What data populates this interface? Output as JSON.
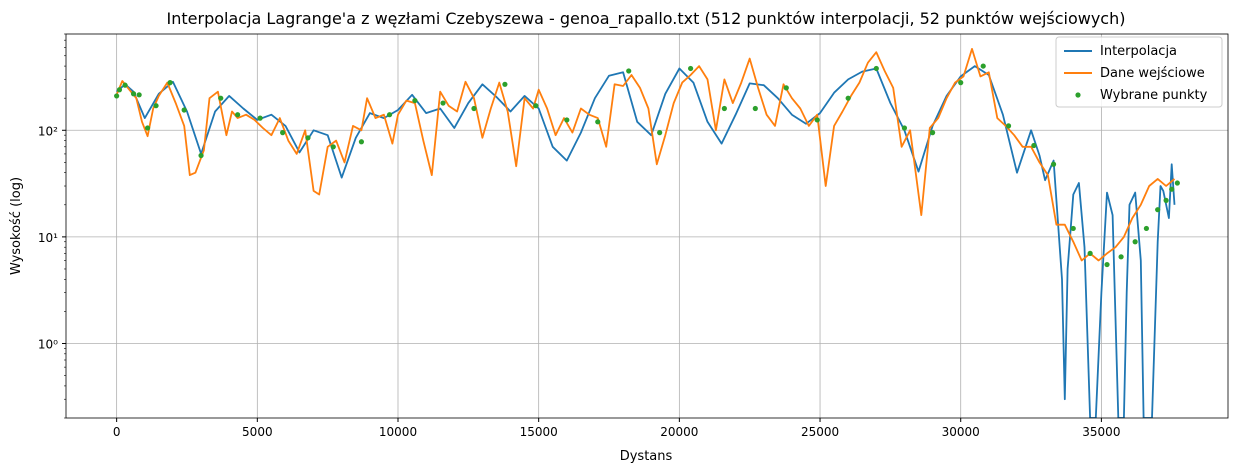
{
  "chart_data": {
    "type": "line",
    "title": "Interpolacja Lagrange'a z węzłami Czebyszewa - genoa_rapallo.txt (512 punktów interpolacji, 52 punktów wejściowych)",
    "xlabel": "Dystans",
    "ylabel": "Wysokość (log)",
    "xlim": [
      -1800,
      39500
    ],
    "ylim": [
      0.2,
      800
    ],
    "yscale": "log",
    "grid": true,
    "legend_position": "top-right",
    "x_ticks": [
      0,
      5000,
      10000,
      15000,
      20000,
      25000,
      30000,
      35000
    ],
    "x_tick_labels": [
      "0",
      "5000",
      "10000",
      "15000",
      "20000",
      "25000",
      "30000",
      "35000"
    ],
    "y_ticks": [
      1,
      10,
      100
    ],
    "y_tick_labels": [
      "10⁰",
      "10¹",
      "10²"
    ],
    "series": [
      {
        "name": "Interpolacja",
        "color": "#1f77b4",
        "style": "line",
        "x": [
          0,
          300,
          600,
          1000,
          1500,
          2000,
          2500,
          3000,
          3500,
          4000,
          4500,
          5000,
          5500,
          6000,
          6500,
          7000,
          7500,
          8000,
          8500,
          9000,
          9500,
          10000,
          10500,
          11000,
          11500,
          12000,
          12500,
          13000,
          13500,
          14000,
          14500,
          15000,
          15500,
          16000,
          16500,
          17000,
          17500,
          18000,
          18500,
          19000,
          19500,
          20000,
          20500,
          21000,
          21500,
          22000,
          22500,
          23000,
          23500,
          24000,
          24500,
          25000,
          25500,
          26000,
          26500,
          27000,
          27500,
          28000,
          28500,
          29000,
          29500,
          30000,
          30500,
          31000,
          31500,
          32000,
          32500,
          32800,
          33000,
          33300,
          33600,
          33700,
          33800,
          34000,
          34200,
          34400,
          34600,
          34800,
          35000,
          35200,
          35400,
          35600,
          35800,
          35900,
          36000,
          36200,
          36400,
          36500,
          36800,
          37000,
          37100,
          37200,
          37400,
          37500,
          37600
        ],
        "values": [
          230,
          270,
          230,
          130,
          220,
          285,
          150,
          60,
          150,
          210,
          160,
          125,
          140,
          110,
          62,
          100,
          90,
          36,
          85,
          145,
          130,
          155,
          215,
          145,
          160,
          105,
          180,
          270,
          205,
          150,
          210,
          160,
          70,
          52,
          95,
          200,
          325,
          350,
          120,
          90,
          220,
          380,
          280,
          120,
          75,
          140,
          275,
          265,
          200,
          140,
          115,
          145,
          225,
          300,
          355,
          380,
          180,
          100,
          41,
          110,
          210,
          320,
          400,
          330,
          140,
          40,
          100,
          58,
          34,
          52,
          4,
          0.3,
          5,
          25,
          32,
          8,
          0.2,
          0.2,
          3,
          26,
          16,
          0.2,
          0.2,
          3,
          20,
          26,
          6,
          0.2,
          0.2,
          9,
          30,
          27,
          15,
          48,
          20
        ]
      },
      {
        "name": "Dane wejściowe",
        "color": "#ff7f0e",
        "style": "line",
        "x": [
          0,
          200,
          400,
          700,
          900,
          1100,
          1300,
          1500,
          1800,
          2100,
          2400,
          2600,
          2800,
          3100,
          3300,
          3600,
          3900,
          4100,
          4300,
          4600,
          4900,
          5200,
          5500,
          5800,
          6100,
          6400,
          6700,
          7000,
          7200,
          7500,
          7800,
          8100,
          8400,
          8700,
          8900,
          9200,
          9500,
          9800,
          10000,
          10300,
          10600,
          10900,
          11200,
          11500,
          11800,
          12100,
          12400,
          12700,
          13000,
          13300,
          13600,
          13900,
          14200,
          14500,
          14800,
          15000,
          15300,
          15600,
          15900,
          16200,
          16500,
          16800,
          17100,
          17400,
          17700,
          18000,
          18300,
          18600,
          18900,
          19200,
          19500,
          19800,
          20100,
          20400,
          20700,
          21000,
          21300,
          21600,
          21900,
          22200,
          22500,
          22800,
          23100,
          23400,
          23700,
          24000,
          24300,
          24600,
          24900,
          25200,
          25500,
          25800,
          26100,
          26400,
          26700,
          27000,
          27300,
          27600,
          27900,
          28200,
          28600,
          28900,
          29200,
          29500,
          29800,
          30100,
          30400,
          30700,
          31000,
          31300,
          31600,
          31900,
          32200,
          32500,
          32800,
          33100,
          33400,
          33700,
          34000,
          34300,
          34600,
          34900,
          35200,
          35500,
          35800,
          36100,
          36400,
          36700,
          37000,
          37300,
          37600
        ],
        "values": [
          215,
          290,
          250,
          200,
          120,
          88,
          160,
          210,
          280,
          180,
          110,
          38,
          40,
          65,
          200,
          230,
          90,
          150,
          130,
          140,
          125,
          105,
          90,
          130,
          80,
          60,
          100,
          27,
          25,
          70,
          80,
          50,
          110,
          100,
          200,
          130,
          140,
          75,
          140,
          190,
          180,
          80,
          38,
          230,
          170,
          150,
          285,
          200,
          85,
          160,
          280,
          150,
          46,
          200,
          160,
          240,
          160,
          90,
          130,
          95,
          160,
          140,
          130,
          70,
          270,
          260,
          330,
          250,
          160,
          48,
          90,
          180,
          280,
          330,
          400,
          300,
          100,
          300,
          180,
          280,
          470,
          250,
          140,
          110,
          270,
          200,
          160,
          110,
          140,
          30,
          110,
          150,
          210,
          280,
          430,
          540,
          360,
          250,
          70,
          100,
          16,
          105,
          130,
          200,
          280,
          320,
          580,
          320,
          350,
          130,
          110,
          90,
          70,
          70,
          50,
          38,
          13,
          13,
          9,
          6,
          7,
          6,
          7,
          8,
          10,
          15,
          20,
          30,
          35,
          30,
          35
        ]
      },
      {
        "name": "Wybrane punkty",
        "color": "#2ca02c",
        "style": "scatter",
        "x": [
          0,
          100,
          300,
          600,
          800,
          1100,
          1400,
          1900,
          2400,
          3000,
          3700,
          4300,
          5100,
          5900,
          6800,
          7700,
          8700,
          9700,
          10600,
          11600,
          12700,
          13800,
          14900,
          16000,
          17100,
          18200,
          19300,
          20400,
          21600,
          22700,
          23800,
          24900,
          26000,
          27000,
          28000,
          29000,
          30000,
          30800,
          31700,
          32600,
          33300,
          34000,
          34600,
          35200,
          35700,
          36200,
          36600,
          37000,
          37300,
          37500,
          37700
        ],
        "values": [
          210,
          240,
          265,
          220,
          215,
          105,
          170,
          280,
          155,
          58,
          200,
          140,
          130,
          95,
          85,
          70,
          78,
          140,
          190,
          180,
          160,
          270,
          170,
          125,
          120,
          360,
          95,
          380,
          160,
          160,
          250,
          125,
          200,
          380,
          105,
          95,
          280,
          400,
          110,
          72,
          48,
          12,
          7,
          5.5,
          6.5,
          9,
          12,
          18,
          22,
          28,
          32
        ]
      }
    ]
  }
}
